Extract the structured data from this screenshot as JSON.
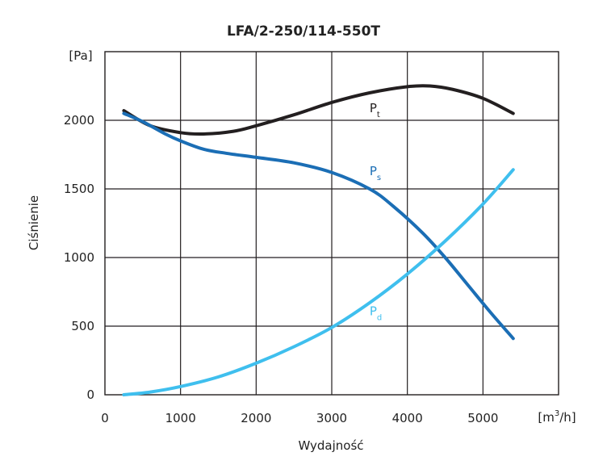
{
  "chart_data": {
    "type": "line",
    "title": "LFA/2-250/114-550T",
    "xlabel": "Wydajność",
    "ylabel": "Ciśnienie",
    "x_unit": "[m",
    "x_unit_sup": "3",
    "x_unit_end": "/h]",
    "y_unit": "[Pa]",
    "xlim": [
      0,
      6000
    ],
    "ylim": [
      0,
      2500
    ],
    "x_ticks": [
      0,
      1000,
      2000,
      3000,
      4000,
      5000
    ],
    "x_tick_labels": [
      "0",
      "1000",
      "2000",
      "3000",
      "4000",
      "5000"
    ],
    "y_ticks": [
      0,
      500,
      1000,
      1500,
      2000
    ],
    "y_tick_labels": [
      "0",
      "500",
      "1000",
      "1500",
      "2000"
    ],
    "grid": true,
    "series": [
      {
        "name": "Pt",
        "label_main": "P",
        "label_sub": "t",
        "label_anchor": [
          3500,
          2060
        ],
        "color": "#231f20",
        "x": [
          250,
          600,
          1000,
          1300,
          1700,
          2000,
          2500,
          3000,
          3500,
          4000,
          4300,
          4600,
          5000,
          5400
        ],
        "y": [
          2070,
          1960,
          1910,
          1900,
          1920,
          1960,
          2040,
          2130,
          2200,
          2245,
          2250,
          2225,
          2160,
          2050
        ]
      },
      {
        "name": "Ps",
        "label_main": "P",
        "label_sub": "s",
        "label_anchor": [
          3500,
          1600
        ],
        "color": "#1b6eb5",
        "x": [
          250,
          500,
          800,
          1000,
          1300,
          1600,
          2000,
          2500,
          3000,
          3500,
          3800,
          4200,
          4500,
          4800,
          5100,
          5400
        ],
        "y": [
          2050,
          1990,
          1900,
          1850,
          1790,
          1760,
          1730,
          1690,
          1620,
          1500,
          1380,
          1180,
          1000,
          800,
          600,
          410
        ]
      },
      {
        "name": "Pd",
        "label_main": "P",
        "label_sub": "d",
        "label_anchor": [
          3500,
          580
        ],
        "color": "#3fbfee",
        "x": [
          250,
          600,
          1000,
          1500,
          2000,
          2500,
          3000,
          3500,
          4000,
          4500,
          5000,
          5400
        ],
        "y": [
          0,
          20,
          60,
          130,
          230,
          350,
          490,
          670,
          880,
          1120,
          1390,
          1640
        ]
      }
    ]
  }
}
